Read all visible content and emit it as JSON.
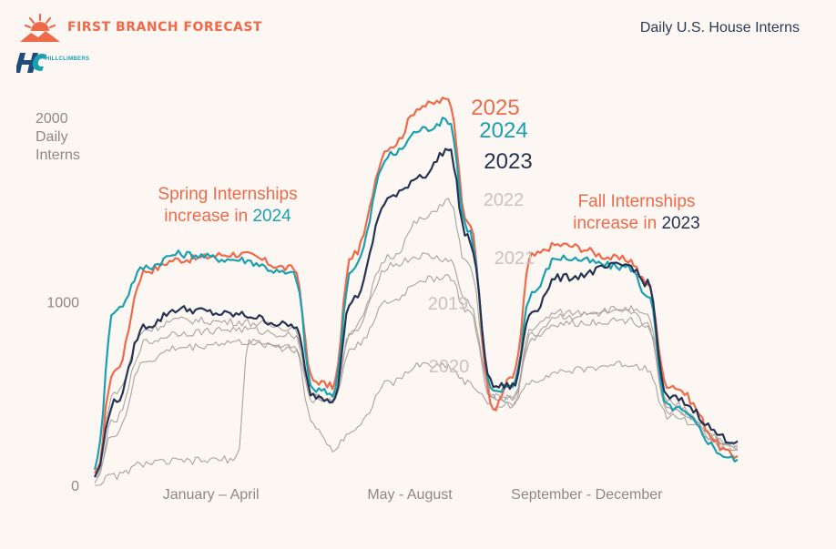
{
  "header": {
    "brand": "FIRST BRANCH FORECAST",
    "partner": "HILLCLIMBERS",
    "subtitle": "Daily U.S. House Interns",
    "logo_icon": "sun-mountain-icon",
    "partner_icon": "hc-logo-icon"
  },
  "annotations": {
    "spring_line1": "Spring Internships",
    "spring_line2_prefix": "increase in ",
    "spring_year": "2024",
    "fall_line1": "Fall Internships",
    "fall_line2_prefix": "increase in ",
    "fall_year": "2023"
  },
  "chart_data": {
    "type": "line",
    "title": "",
    "xlabel": "",
    "ylabel": "2000 Daily Interns",
    "y_axis_top_label": [
      "2000",
      "Daily",
      "Interns"
    ],
    "ylim": [
      0,
      2000
    ],
    "yticks": [
      "1000",
      "0"
    ],
    "x_period_labels": [
      "January – April",
      "May - August",
      "September - December"
    ],
    "x_period_range_pct": [
      0,
      100
    ],
    "legend": "inline labels at line peaks",
    "colors": {
      "2025": "#ee6a4a",
      "2024": "#1aa0b0",
      "2023": "#253452",
      "gray": "#a9a3a0",
      "gray_label": "#c9c2be"
    },
    "series": [
      {
        "name": "2025",
        "x": [
          0,
          3,
          8,
          13,
          22,
          31,
          34,
          37,
          40,
          46,
          51,
          55,
          58,
          62,
          65,
          68,
          72,
          83,
          86,
          89,
          100
        ],
        "y": [
          50,
          620,
          1170,
          1230,
          1260,
          1180,
          570,
          540,
          1250,
          1850,
          2070,
          2100,
          1450,
          420,
          590,
          1250,
          1310,
          1230,
          1100,
          550,
          160
        ]
      },
      {
        "name": "2024",
        "x": [
          0,
          3,
          8,
          13,
          22,
          31,
          34,
          37,
          40,
          46,
          51,
          55,
          58,
          62,
          65,
          68,
          72,
          83,
          86,
          89,
          100
        ],
        "y": [
          100,
          950,
          1190,
          1260,
          1230,
          1150,
          520,
          500,
          1180,
          1800,
          1940,
          1990,
          1400,
          500,
          550,
          1050,
          1240,
          1190,
          1040,
          430,
          140
        ]
      },
      {
        "name": "2023",
        "x": [
          0,
          3,
          8,
          13,
          22,
          31,
          34,
          37,
          40,
          46,
          51,
          55,
          58,
          62,
          65,
          68,
          72,
          83,
          86,
          89,
          100
        ],
        "y": [
          50,
          450,
          870,
          960,
          930,
          870,
          490,
          470,
          1010,
          1570,
          1690,
          1830,
          1350,
          540,
          540,
          950,
          1130,
          1200,
          1100,
          480,
          240
        ]
      },
      {
        "name": "2022",
        "x": [
          0,
          3,
          8,
          13,
          22,
          31,
          34,
          37,
          40,
          46,
          51,
          55,
          58,
          62,
          65,
          68,
          72,
          83,
          86,
          89,
          100
        ],
        "y": [
          50,
          500,
          850,
          900,
          890,
          860,
          480,
          470,
          850,
          1250,
          1450,
          1550,
          1200,
          480,
          470,
          860,
          940,
          960,
          920,
          450,
          210
        ]
      },
      {
        "name": "2021",
        "x": [
          0,
          3,
          8,
          13,
          22,
          31,
          34,
          37,
          40,
          46,
          51,
          55,
          58,
          62,
          65,
          68,
          72,
          83,
          86,
          89,
          100
        ],
        "y": [
          30,
          350,
          780,
          830,
          850,
          820,
          480,
          470,
          830,
          1200,
          1250,
          1230,
          1000,
          480,
          470,
          820,
          920,
          940,
          880,
          420,
          220
        ]
      },
      {
        "name": "2019",
        "x": [
          0,
          3,
          8,
          13,
          22,
          31,
          34,
          37,
          40,
          46,
          51,
          55,
          58,
          62,
          65,
          68,
          72,
          83,
          86,
          89,
          100
        ],
        "y": [
          30,
          280,
          680,
          750,
          780,
          760,
          470,
          460,
          750,
          1000,
          1120,
          1140,
          950,
          460,
          450,
          800,
          880,
          900,
          870,
          400,
          200
        ]
      },
      {
        "name": "2020",
        "x": [
          0,
          3,
          8,
          13,
          22,
          24,
          31,
          34,
          37,
          40,
          46,
          51,
          55,
          58,
          62,
          65,
          68,
          72,
          83,
          86,
          89,
          100
        ],
        "y": [
          0,
          50,
          120,
          130,
          140,
          780,
          740,
          330,
          200,
          300,
          560,
          660,
          650,
          560,
          430,
          440,
          570,
          620,
          660,
          640,
          380,
          190
        ]
      }
    ]
  }
}
